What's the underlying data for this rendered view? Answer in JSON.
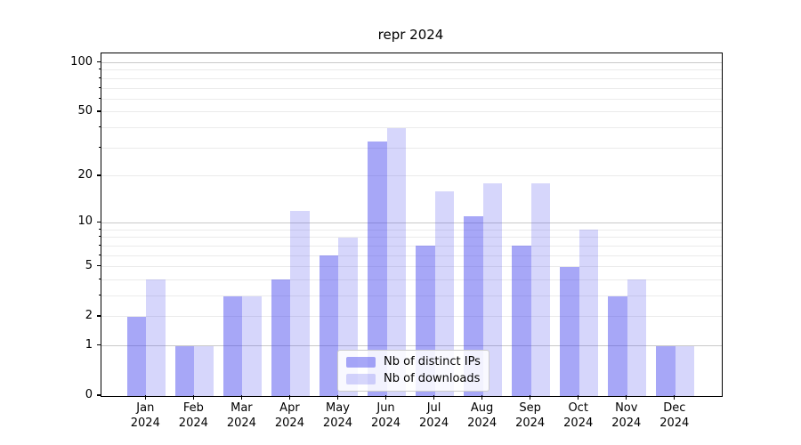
{
  "title": "repr 2024",
  "chart_data": {
    "type": "bar",
    "title": "repr 2024",
    "categories": [
      "Jan 2024",
      "Feb 2024",
      "Mar 2024",
      "Apr 2024",
      "May 2024",
      "Jun 2024",
      "Jul 2024",
      "Aug 2024",
      "Sep 2024",
      "Oct 2024",
      "Nov 2024",
      "Dec 2024"
    ],
    "series": [
      {
        "name": "Nb of distinct IPs",
        "color": "rgba(68,68,238,0.47)",
        "values": [
          2,
          1,
          3,
          4,
          6,
          33,
          7,
          11,
          7,
          5,
          3,
          1
        ]
      },
      {
        "name": "Nb of downloads",
        "color": "rgba(68,68,238,0.22)",
        "values": [
          4,
          1,
          3,
          12,
          8,
          40,
          16,
          18,
          18,
          9,
          4,
          1
        ]
      }
    ],
    "yscale": "log1p",
    "ylim": [
      0,
      114
    ],
    "y_ticks": [
      100,
      50,
      20,
      10,
      5,
      2,
      1,
      0
    ],
    "y_major_gridlines": [
      1,
      10,
      100
    ],
    "y_minor_gridlines": [
      2,
      3,
      4,
      5,
      6,
      7,
      8,
      9,
      20,
      30,
      40,
      50,
      60,
      70,
      80,
      90
    ],
    "grid": true,
    "legend_position": "lower center",
    "xlabel": "",
    "ylabel": ""
  },
  "colors": {
    "background": "#ffffff",
    "spine": "#000000",
    "gridline_major": "#c9c9c9",
    "gridline_minor": "#ebebeb",
    "bar_distinct_ips": "#a7a7f7",
    "bar_downloads": "#d6d6fb",
    "text": "#000000"
  }
}
